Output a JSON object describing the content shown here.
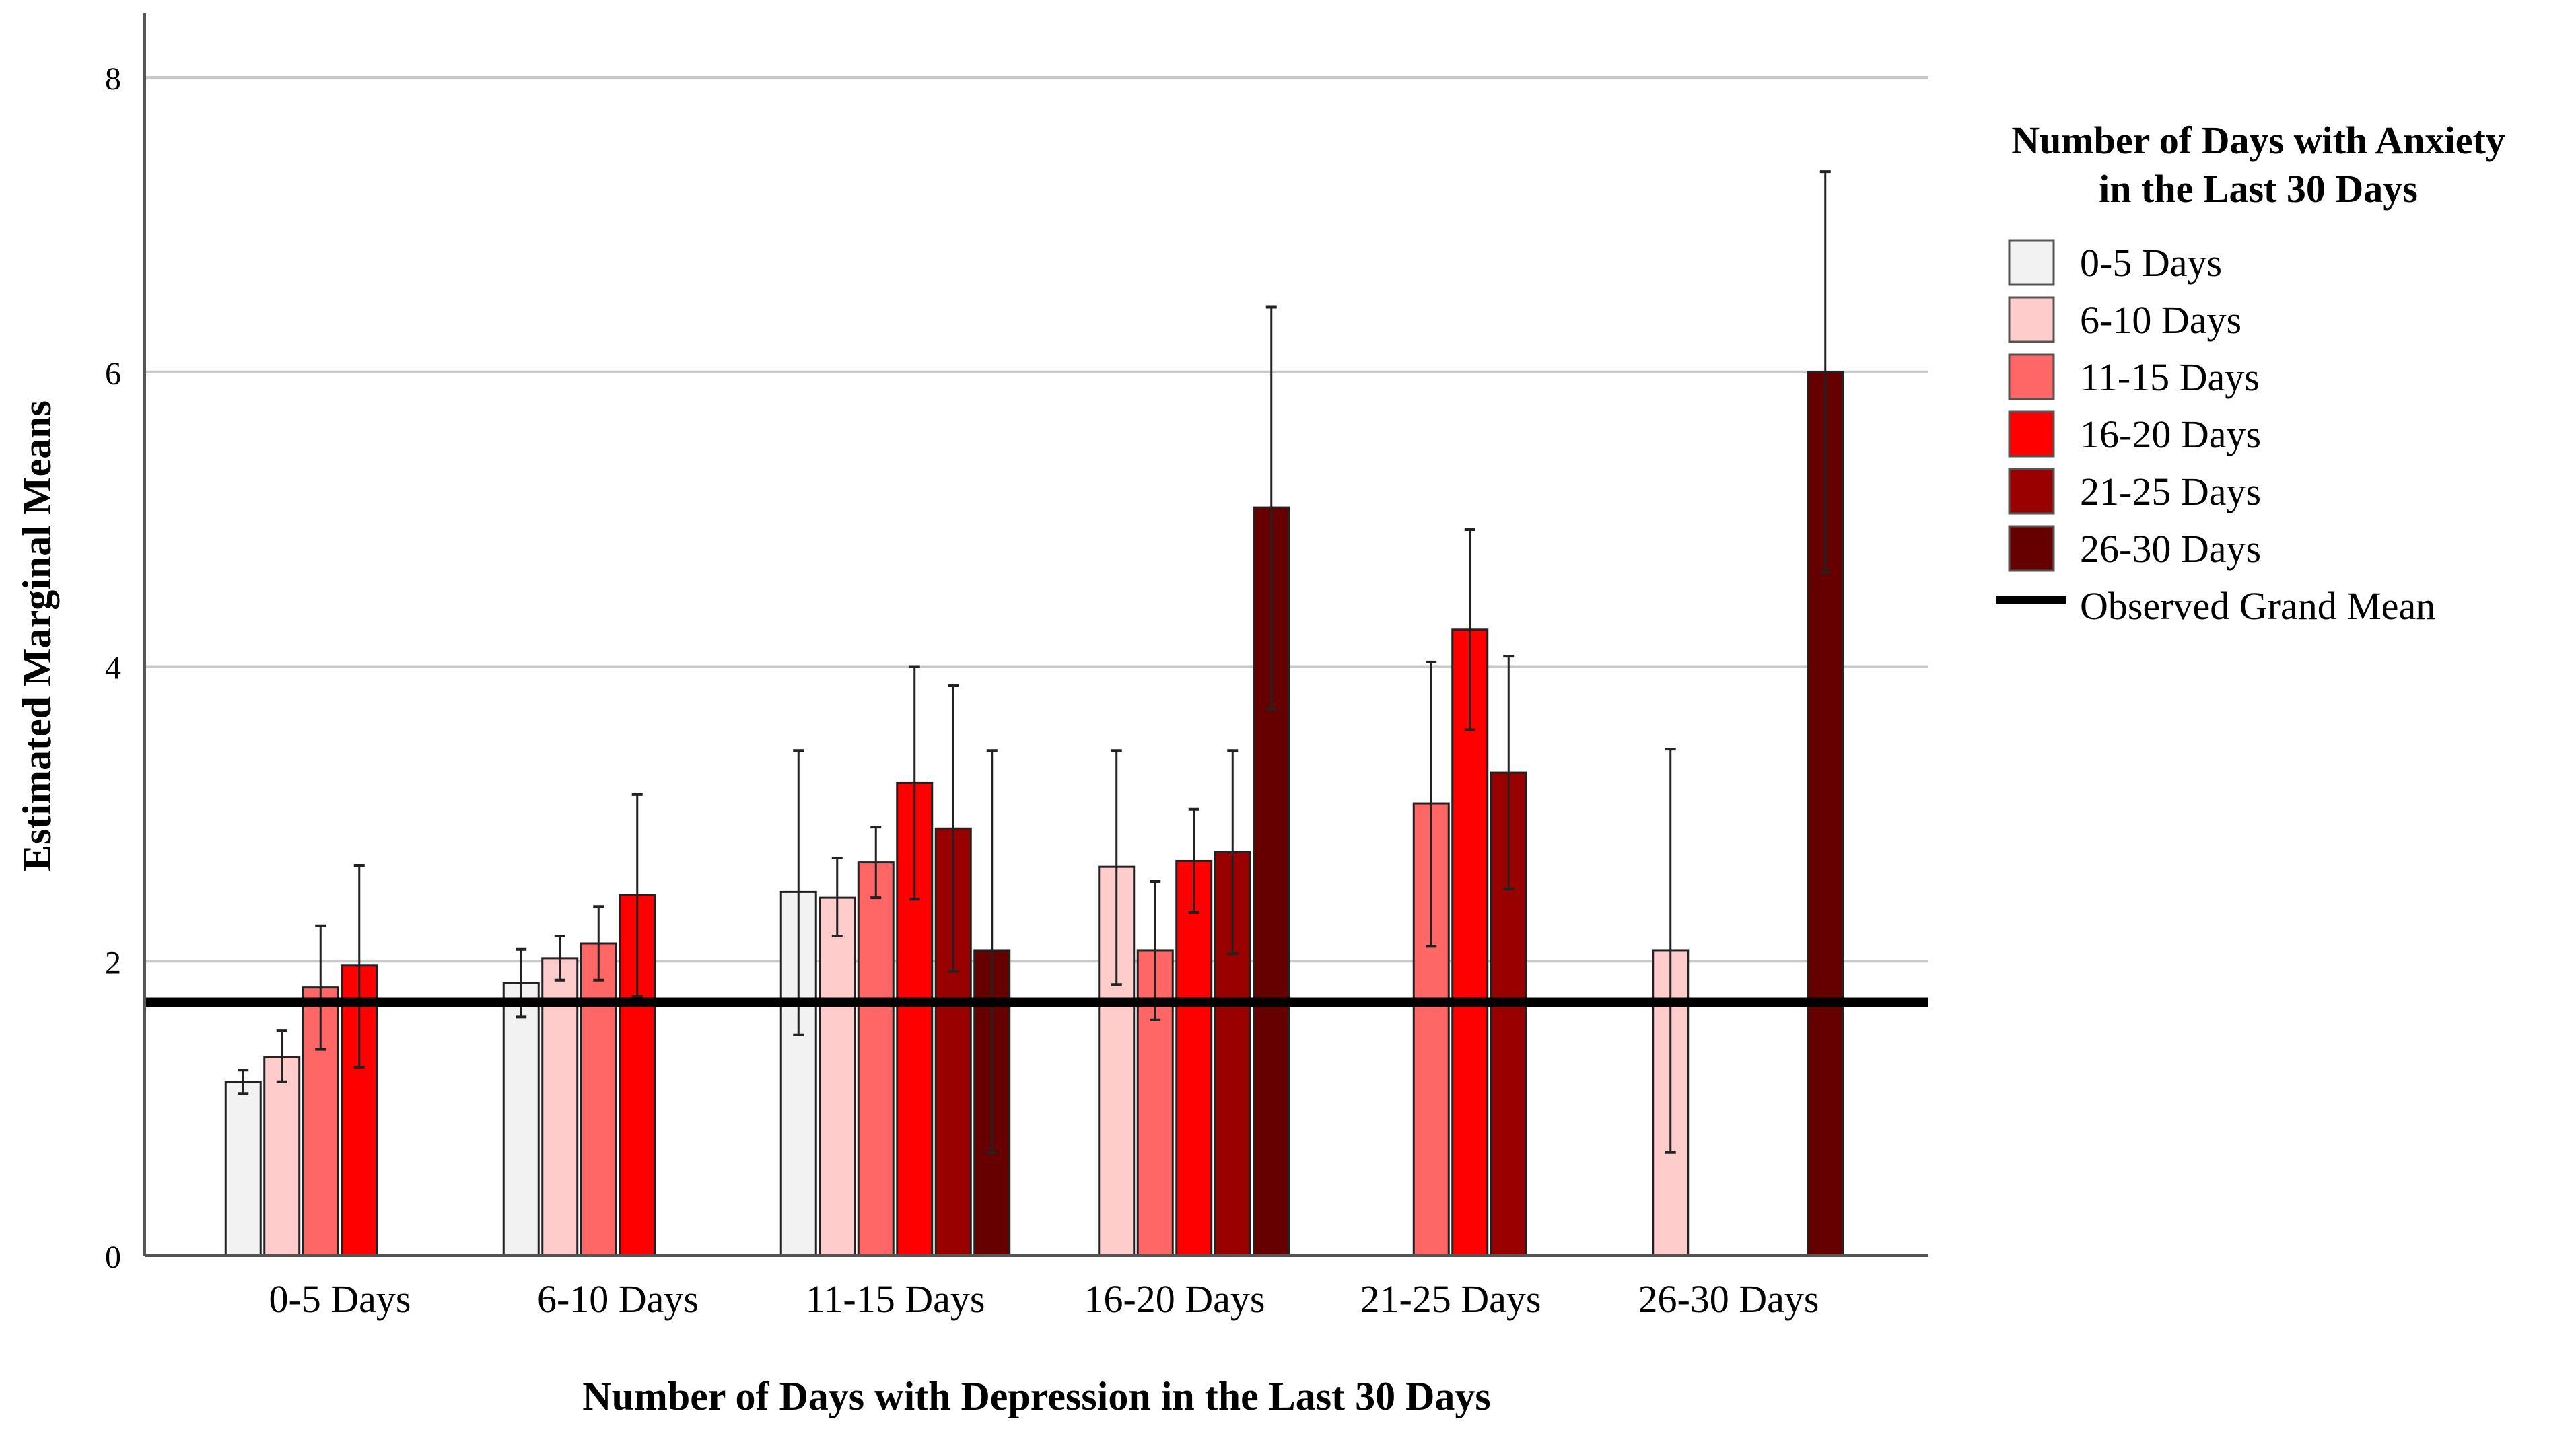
{
  "chart_data": {
    "type": "bar",
    "title": "",
    "xlabel": "Number of Days with Depression in the Last 30 Days",
    "ylabel": "Estimated Marginal Means",
    "ylim": [
      0,
      8.4
    ],
    "yticks": [
      0,
      2,
      4,
      6,
      8
    ],
    "grid": true,
    "categories": [
      "0-5 Days",
      "6-10 Days",
      "11-15 Days",
      "16-20 Days",
      "21-25 Days",
      "26-30 Days"
    ],
    "legend": {
      "title": "Number of Days with Anxiety in the Last 30 Days",
      "title_lines": [
        "Number of Days with Anxiety",
        "in the Last 30 Days"
      ],
      "position": "right",
      "grand_mean_label": "Observed Grand Mean"
    },
    "grand_mean": 1.72,
    "series": [
      {
        "name": "0-5 Days",
        "color": "#f2f2f2",
        "values": [
          1.18,
          1.85,
          2.47,
          null,
          null,
          null
        ],
        "err_low": [
          1.1,
          1.62,
          1.5,
          null,
          null,
          null
        ],
        "err_high": [
          1.26,
          2.08,
          3.43,
          null,
          null,
          null
        ]
      },
      {
        "name": "6-10 Days",
        "color": "#ffcccc",
        "values": [
          1.35,
          2.02,
          2.43,
          2.64,
          null,
          2.07
        ],
        "err_low": [
          1.18,
          1.87,
          2.17,
          1.84,
          null,
          0.7
        ],
        "err_high": [
          1.53,
          2.17,
          2.7,
          3.43,
          null,
          3.44
        ]
      },
      {
        "name": "11-15 Days",
        "color": "#ff6666",
        "values": [
          1.82,
          2.12,
          2.67,
          2.07,
          3.07,
          null
        ],
        "err_low": [
          1.4,
          1.87,
          2.43,
          1.6,
          2.1,
          null
        ],
        "err_high": [
          2.24,
          2.37,
          2.91,
          2.54,
          4.03,
          null
        ]
      },
      {
        "name": "16-20 Days",
        "color": "#ff0000",
        "values": [
          1.97,
          2.45,
          3.21,
          2.68,
          4.25,
          null
        ],
        "err_low": [
          1.28,
          1.76,
          2.42,
          2.33,
          3.57,
          null
        ],
        "err_high": [
          2.65,
          3.13,
          4.0,
          3.03,
          4.93,
          null
        ]
      },
      {
        "name": "21-25 Days",
        "color": "#990000",
        "values": [
          null,
          null,
          2.9,
          2.74,
          3.28,
          null
        ],
        "err_low": [
          null,
          null,
          1.93,
          2.05,
          2.49,
          null
        ],
        "err_high": [
          null,
          null,
          3.87,
          3.43,
          4.07,
          null
        ]
      },
      {
        "name": "26-30 Days",
        "color": "#660000",
        "values": [
          null,
          null,
          2.07,
          5.08,
          null,
          6.0
        ],
        "err_low": [
          null,
          null,
          0.7,
          3.71,
          null,
          4.64
        ],
        "err_high": [
          null,
          null,
          3.43,
          6.44,
          null,
          7.36
        ]
      }
    ]
  }
}
